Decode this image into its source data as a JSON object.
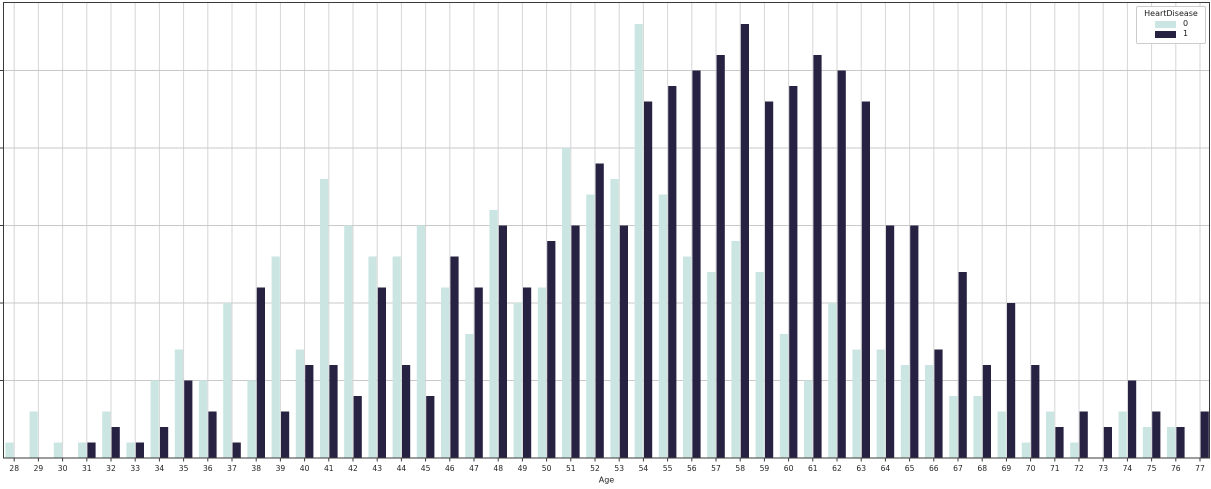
{
  "chart_data": {
    "type": "bar",
    "title": "",
    "xlabel": "Age",
    "ylabel": "",
    "legend_title": "HeartDisease",
    "legend_position": "upper right",
    "grid": true,
    "ylim": [
      0,
      29.4
    ],
    "yticks": [
      0,
      5,
      10,
      15,
      20,
      25
    ],
    "ytick_labels_visible": false,
    "categories": [
      28,
      29,
      30,
      31,
      32,
      33,
      34,
      35,
      36,
      37,
      38,
      39,
      40,
      41,
      42,
      43,
      44,
      45,
      46,
      47,
      48,
      49,
      50,
      51,
      52,
      53,
      54,
      55,
      56,
      57,
      58,
      59,
      60,
      61,
      62,
      63,
      64,
      65,
      66,
      67,
      68,
      69,
      70,
      71,
      72,
      73,
      74,
      75,
      76,
      77
    ],
    "series": [
      {
        "name": "0",
        "color": "#cbe6e2",
        "values": [
          1,
          3,
          1,
          1,
          3,
          1,
          5,
          7,
          5,
          10,
          5,
          13,
          7,
          18,
          15,
          13,
          13,
          15,
          11,
          8,
          16,
          10,
          11,
          20,
          17,
          18,
          28,
          17,
          13,
          12,
          14,
          12,
          8,
          5,
          10,
          7,
          7,
          6,
          6,
          4,
          4,
          3,
          1,
          3,
          1,
          0,
          3,
          2,
          2,
          0
        ]
      },
      {
        "name": "1",
        "color": "#272142",
        "values": [
          0,
          0,
          0,
          1,
          2,
          1,
          2,
          5,
          3,
          1,
          11,
          3,
          6,
          6,
          4,
          11,
          6,
          4,
          13,
          11,
          15,
          11,
          14,
          15,
          19,
          15,
          23,
          24,
          25,
          26,
          28,
          23,
          24,
          26,
          25,
          23,
          15,
          15,
          7,
          12,
          6,
          10,
          6,
          2,
          3,
          2,
          5,
          3,
          2,
          3
        ]
      }
    ]
  },
  "style": {
    "grid_color_h": "#c9c9c9",
    "grid_color_v": "#d6d6d6",
    "spine_color": "#3a3a3a",
    "tick_color": "#3a3a3a"
  }
}
